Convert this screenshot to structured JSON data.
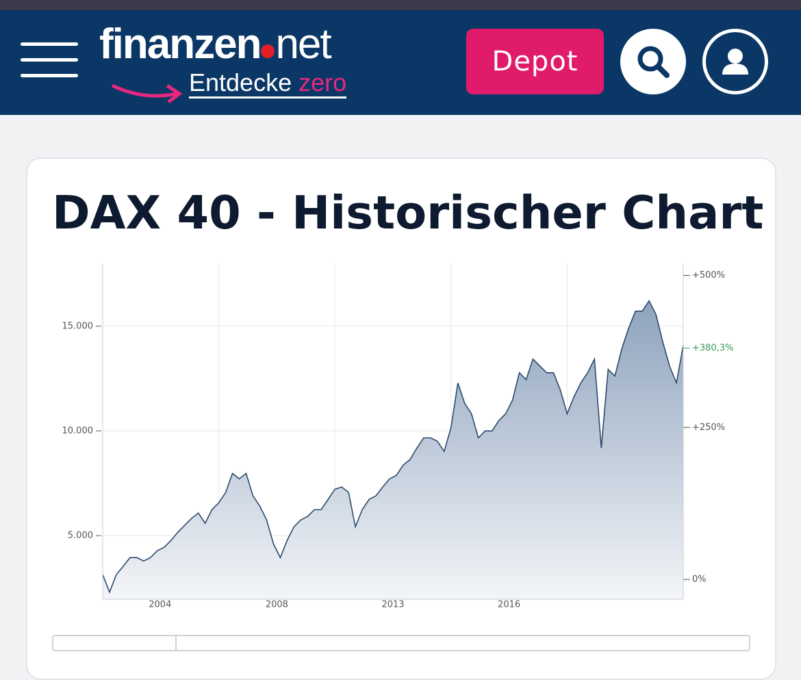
{
  "header": {
    "logo": "finanzen",
    "logo_suffix": "net",
    "tagline": "Entdecke",
    "tagline_highlight": "zero",
    "button": "Depot"
  },
  "chart_data": {
    "type": "area",
    "title": "DAX 40 - Historischer Chart",
    "color": "#2c4a6e",
    "values": [
      3140,
      2300,
      3140,
      3530,
      3950,
      3950,
      3790,
      3950,
      4280,
      4440,
      4770,
      5160,
      5490,
      5820,
      6080,
      5590,
      6240,
      6570,
      7060,
      7970,
      7710,
      7970,
      6900,
      6410,
      5750,
      4610,
      3950,
      4770,
      5420,
      5750,
      5920,
      6240,
      6240,
      6730,
      7220,
      7320,
      7060,
      5420,
      6240,
      6730,
      6900,
      7320,
      7710,
      7880,
      8370,
      8630,
      9180,
      9670,
      9670,
      9510,
      9020,
      10160,
      12290,
      11310,
      10820,
      9670,
      10000,
      10000,
      10490,
      10820,
      11470,
      12780,
      12450,
      13430,
      13100,
      12780,
      12780,
      11960,
      10820,
      11630,
      12290,
      12780,
      13430,
      9180,
      12940,
      12620,
      13920,
      14900,
      15720,
      15720,
      16210,
      15560,
      14250,
      13100,
      12290,
      14080
    ],
    "xlim": [
      0,
      85
    ],
    "xticks": [
      {
        "value": 8.4,
        "label": "2004"
      },
      {
        "value": 25.5,
        "label": "2008"
      },
      {
        "value": 42.5,
        "label": "2013"
      },
      {
        "value": 59.5,
        "label": "2016"
      }
    ],
    "xgrid": [
      17,
      34,
      51,
      68
    ],
    "ylim": [
      1960,
      18000
    ],
    "yticks": [
      {
        "value": 5000,
        "label": "5.000"
      },
      {
        "value": 10000,
        "label": "10.000"
      },
      {
        "value": 15000,
        "label": "15.000"
      }
    ],
    "y2lim": [
      -32.6,
      519.7
    ],
    "y2ticks": [
      {
        "value": 500,
        "label": "+500%"
      },
      {
        "value": 250,
        "label": "+250%"
      },
      {
        "value": 0,
        "label": "0%"
      }
    ],
    "y2marker": {
      "value": 380.3,
      "label": "+380,3%",
      "color": "#3a9a5a"
    },
    "grid": true
  }
}
